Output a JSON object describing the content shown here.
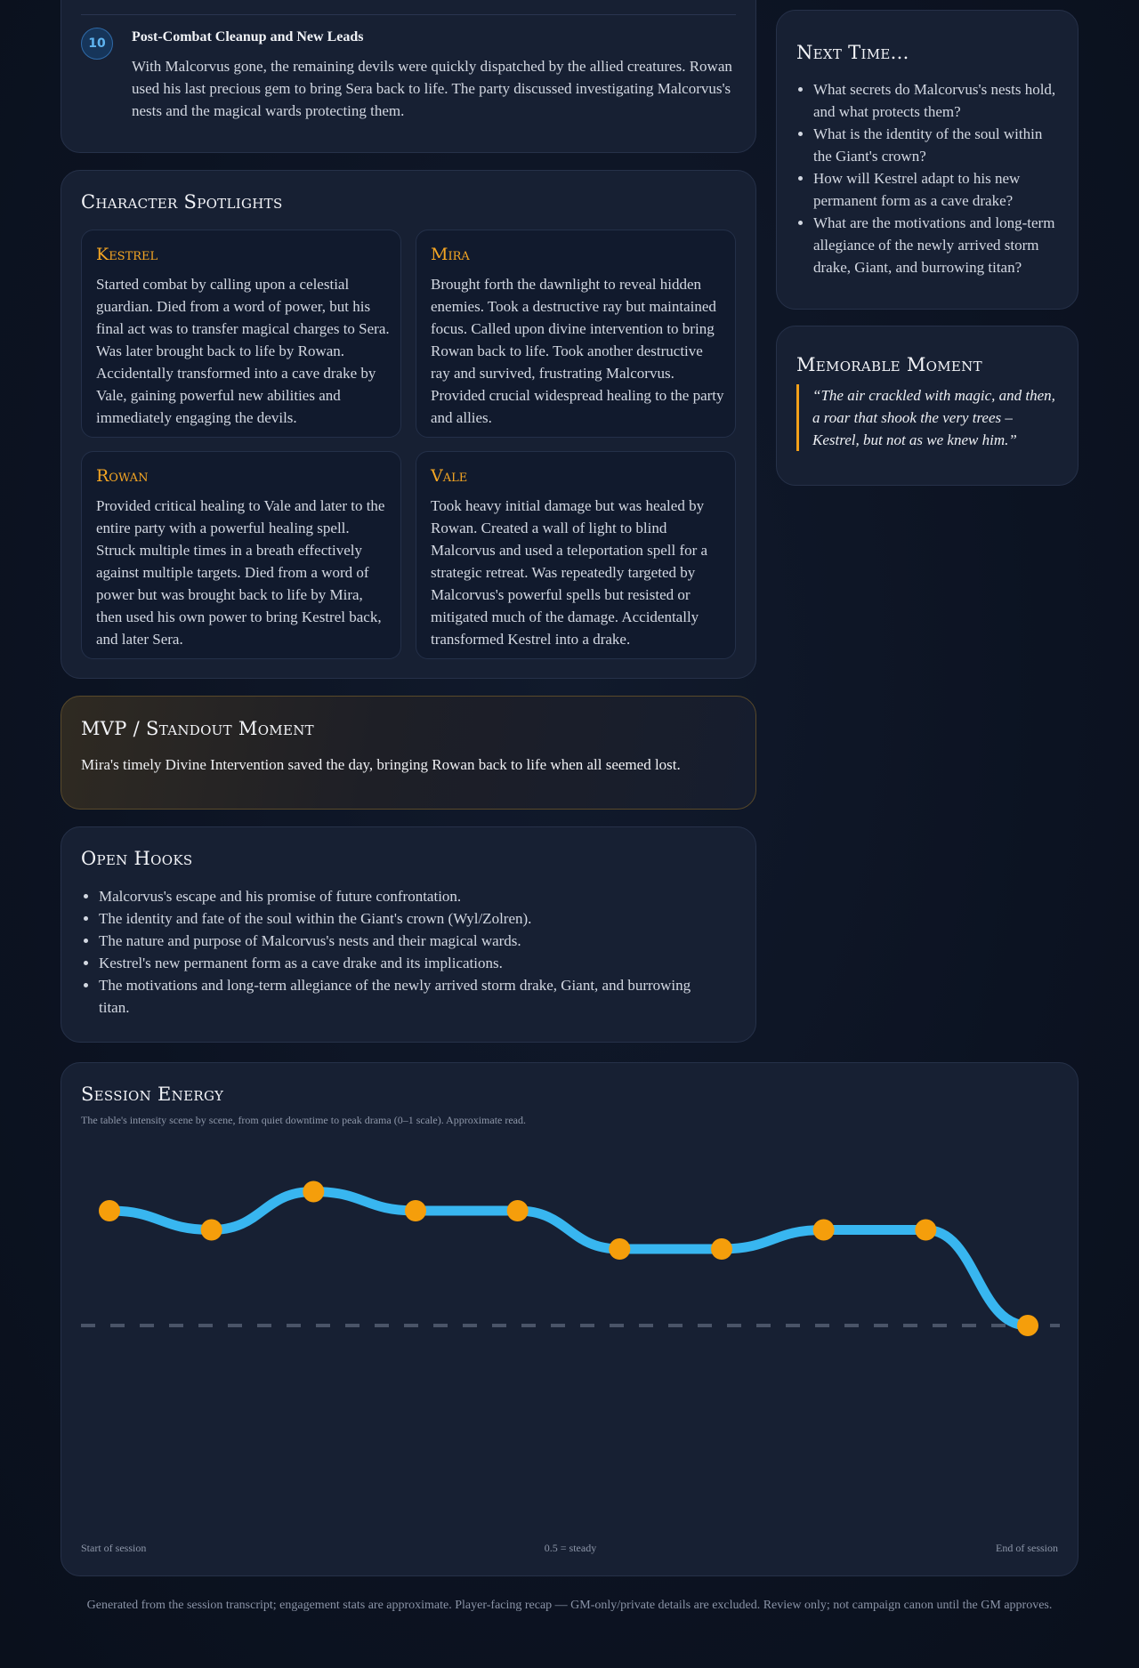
{
  "scene": {
    "number": "10",
    "title": "Post-Combat Cleanup and New Leads",
    "text": "With Malcorvus gone, the remaining devils were quickly dispatched by the allied creatures. Rowan used his last precious gem to bring Sera back to life. The party discussed investigating Malcorvus's nests and the magical wards protecting them."
  },
  "next_time": {
    "title": "Next Time...",
    "items": [
      "What secrets do Malcorvus's nests hold, and what protects them?",
      "What is the identity of the soul within the Giant's crown?",
      "How will Kestrel adapt to his new permanent form as a cave drake?",
      "What are the motivations and long-term allegiance of the newly arrived storm drake, Giant, and burrowing titan?"
    ]
  },
  "memorable": {
    "title": "Memorable Moment",
    "quote": "“The air crackled with magic, and then, a roar that shook the very trees – Kestrel, but not as we knew him.”"
  },
  "spotlights": {
    "title": "Character Spotlights",
    "kestrel": {
      "name": "Kestrel",
      "text": "Started combat by calling upon a celestial guardian. Died from a word of power, but his final act was to transfer magical charges to Sera. Was later brought back to life by Rowan. Accidentally transformed into a cave drake by Vale, gaining powerful new abilities and immediately engaging the devils."
    },
    "mira": {
      "name": "Mira",
      "text": "Brought forth the dawnlight to reveal hidden enemies. Took a destructive ray but maintained focus. Called upon divine intervention to bring Rowan back to life. Took another destructive ray and survived, frustrating Malcorvus. Provided crucial widespread healing to the party and allies."
    },
    "rowan": {
      "name": "Rowan",
      "text": "Provided critical healing to Vale and later to the entire party with a powerful healing spell. Struck multiple times in a breath effectively against multiple targets. Died from a word of power but was brought back to life by Mira, then used his own power to bring Kestrel back, and later Sera."
    },
    "vale": {
      "name": "Vale",
      "text": "Took heavy initial damage but was healed by Rowan. Created a wall of light to blind Malcorvus and used a teleportation spell for a strategic retreat. Was repeatedly targeted by Malcorvus's powerful spells but resisted or mitigated much of the damage. Accidentally transformed Kestrel into a drake."
    }
  },
  "mvp": {
    "title": "MVP / Standout Moment",
    "text": "Mira's timely Divine Intervention saved the day, bringing Rowan back to life when all seemed lost."
  },
  "hooks": {
    "title": "Open Hooks",
    "items": [
      "Malcorvus's escape and his promise of future confrontation.",
      "The identity and fate of the soul within the Giant's crown (Wyl/Zolren).",
      "The nature and purpose of Malcorvus's nests and their magical wards.",
      "Kestrel's new permanent form as a cave drake and its implications.",
      "The motivations and long-term allegiance of the newly arrived storm drake, Giant, and burrowing titan."
    ]
  },
  "energy": {
    "title": "Session Energy",
    "subtitle": "The table's intensity scene by scene, from quiet downtime to peak drama (0–1 scale). Approximate read.",
    "label_start": "Start of session",
    "label_mid": "0.5 = steady",
    "label_end": "End of session"
  },
  "chart_data": {
    "type": "line",
    "x": [
      1,
      2,
      3,
      4,
      5,
      6,
      7,
      8,
      9,
      10
    ],
    "values": [
      0.8,
      0.75,
      0.85,
      0.8,
      0.8,
      0.7,
      0.7,
      0.75,
      0.75,
      0.5
    ],
    "ylim": [
      0,
      1
    ],
    "reference_line": 0.5,
    "line_color": "#38b6f0",
    "point_color": "#f59e0b",
    "grid": false
  },
  "footer": "Generated from the session transcript; engagement stats are approximate. Player-facing recap — GM-only/private details are excluded. Review only; not campaign canon until the GM approves."
}
